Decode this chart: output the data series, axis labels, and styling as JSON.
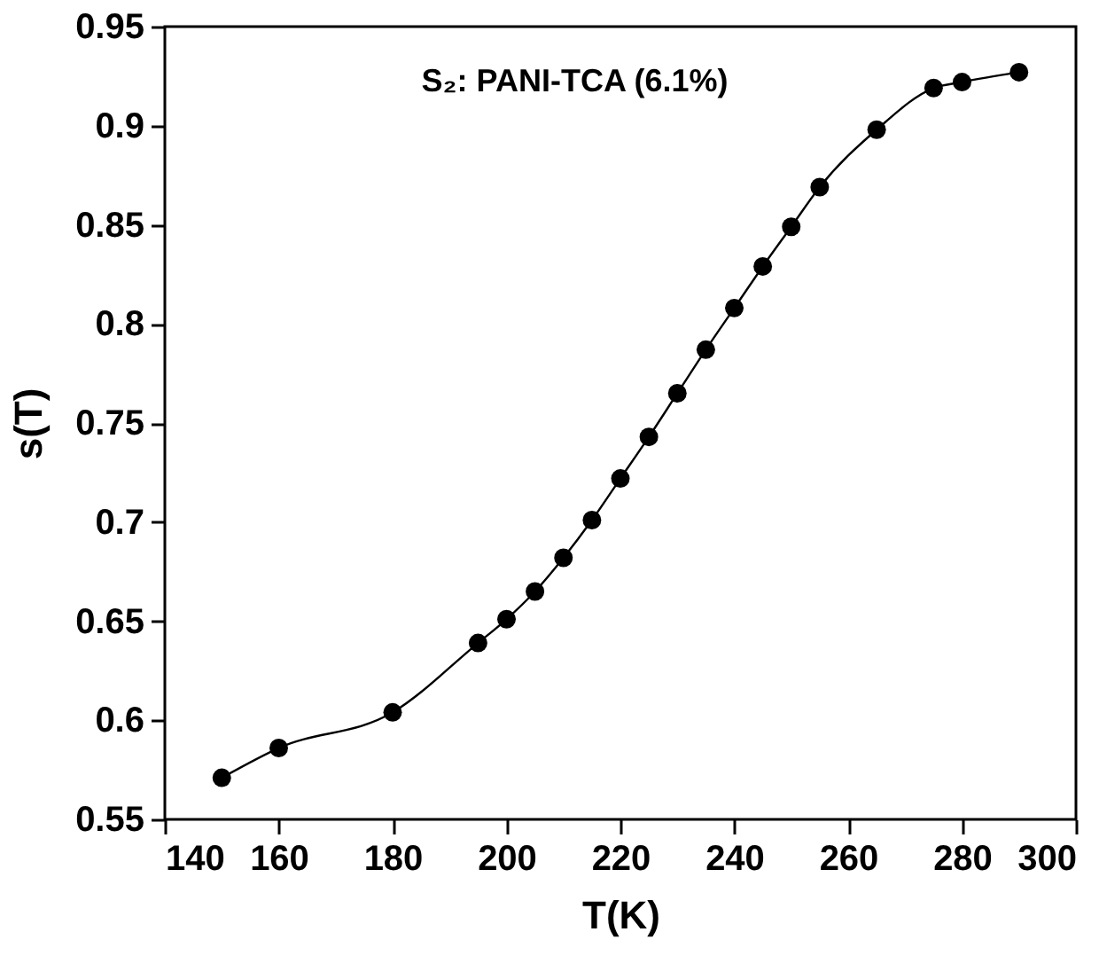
{
  "chart_data": {
    "type": "line",
    "xlabel": "T(K)",
    "ylabel": "s(T)",
    "annotations": [
      "S₂: PANI-TCA (6.1%)"
    ],
    "x": [
      150,
      160,
      180,
      195,
      200,
      205,
      210,
      215,
      220,
      225,
      230,
      235,
      240,
      245,
      250,
      255,
      265,
      275,
      280,
      290
    ],
    "series": [
      {
        "color": "#000000",
        "values": [
          0.571,
          0.586,
          0.604,
          0.639,
          0.651,
          0.665,
          0.682,
          0.701,
          0.722,
          0.743,
          0.765,
          0.787,
          0.808,
          0.829,
          0.849,
          0.869,
          0.898,
          0.919,
          0.922,
          0.927
        ]
      }
    ],
    "marker": "circle",
    "line_style": "solid",
    "xlim": [
      140,
      300
    ],
    "xticks": [
      140,
      160,
      180,
      200,
      220,
      240,
      260,
      280,
      300
    ],
    "ylim": [
      0.55,
      0.95
    ],
    "yticks": [
      0.55,
      0.6,
      0.65,
      0.7,
      0.75,
      0.8,
      0.85,
      0.9,
      0.95
    ],
    "grid": false
  }
}
